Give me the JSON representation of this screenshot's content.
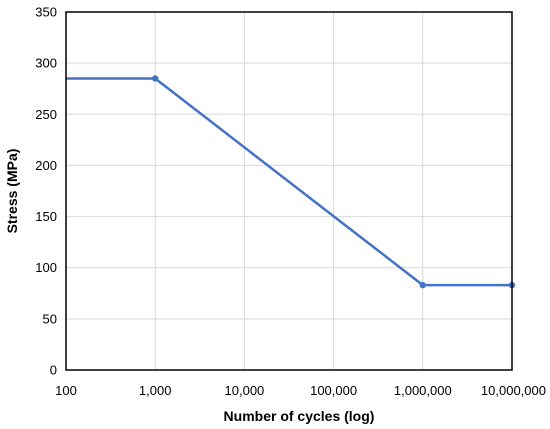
{
  "chart_data": {
    "type": "line",
    "xlabel": "Number of cycles  (log)",
    "ylabel": "Stress (MPa)",
    "x_scale": "log",
    "xlim": [
      100,
      10000000
    ],
    "ylim": [
      0,
      350
    ],
    "x_ticks": [
      100,
      1000,
      10000,
      100000,
      1000000,
      10000000
    ],
    "x_tick_labels": [
      "100",
      "1,000",
      "10,000",
      "100,000",
      "1,000,000",
      "10,000,000"
    ],
    "y_ticks": [
      0,
      50,
      100,
      150,
      200,
      250,
      300,
      350
    ],
    "y_tick_labels": [
      "0",
      "50",
      "100",
      "150",
      "200",
      "250",
      "300",
      "350"
    ],
    "grid": true,
    "legend": false,
    "line_color": "#4472C4",
    "series": [
      {
        "x": [
          100,
          1000,
          1000000,
          10000000
        ],
        "y": [
          285,
          285,
          83,
          83
        ],
        "markers": [
          false,
          true,
          true,
          true
        ]
      }
    ]
  }
}
